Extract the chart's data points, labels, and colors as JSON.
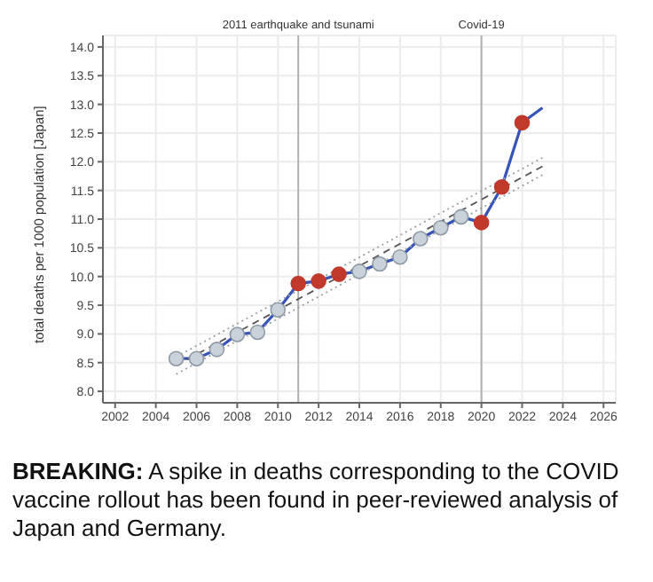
{
  "chart_data": {
    "type": "line",
    "ylabel": "total deaths per 1000 population [Japan]",
    "series": [
      {
        "color": "#3553b8",
        "x": [
          2005,
          2006,
          2007,
          2008,
          2009,
          2010,
          2011,
          2012,
          2013,
          2014,
          2015,
          2016,
          2017,
          2018,
          2019,
          2020,
          2021,
          2022,
          2023
        ],
        "values": [
          8.57,
          8.57,
          8.73,
          8.99,
          9.03,
          9.42,
          9.88,
          9.92,
          10.04,
          10.09,
          10.22,
          10.34,
          10.66,
          10.85,
          11.04,
          10.94,
          11.56,
          12.68,
          12.94
        ],
        "colors": [
          "#c9d1d9",
          "#c9d1d9",
          "#c9d1d9",
          "#c9d1d9",
          "#c9d1d9",
          "#c9d1d9",
          "#c0392b",
          "#c0392b",
          "#c0392b",
          "#c9d1d9",
          "#c9d1d9",
          "#c9d1d9",
          "#c9d1d9",
          "#c9d1d9",
          "#c9d1d9",
          "#c0392b",
          "#c0392b",
          "#c0392b",
          null
        ],
        "marker": "circle",
        "line_style": "solid"
      },
      {
        "color": "#555555",
        "x": [
          2005,
          2023
        ],
        "values": [
          8.45,
          11.92
        ],
        "marker": "none",
        "line_style": "dashed"
      },
      {
        "color": "#9aa0a6",
        "x": [
          2005,
          2023
        ],
        "values": [
          8.6,
          12.07
        ],
        "marker": "none",
        "line_style": "dotted"
      },
      {
        "color": "#9aa0a6",
        "x": [
          2005,
          2023
        ],
        "values": [
          8.3,
          11.77
        ],
        "marker": "none",
        "line_style": "dotted"
      }
    ],
    "xlim": [
      2001.4,
      2026.6
    ],
    "xticks": [
      2002,
      2004,
      2006,
      2008,
      2010,
      2012,
      2014,
      2016,
      2018,
      2020,
      2022,
      2024,
      2026
    ],
    "ylim": [
      7.8,
      14.2
    ],
    "yticks": [
      {
        "value": 8,
        "label": "8.0"
      },
      {
        "value": 8.5,
        "label": "8.5"
      },
      {
        "value": 9,
        "label": "9.0"
      },
      {
        "value": 9.5,
        "label": "9.5"
      },
      {
        "value": 10,
        "label": "10.0"
      },
      {
        "value": 10.5,
        "label": "10.5"
      },
      {
        "value": 11,
        "label": "11.0"
      },
      {
        "value": 11.5,
        "label": "11.5"
      },
      {
        "value": 12,
        "label": "12.0"
      },
      {
        "value": 12.5,
        "label": "12.5"
      },
      {
        "value": 13,
        "label": "13.0"
      },
      {
        "value": 13.5,
        "label": "13.5"
      },
      {
        "value": 14,
        "label": "14.0"
      }
    ],
    "ref_lines": [
      {
        "axis": "x",
        "value": 2011,
        "label": "2011 earthquake and tsunami",
        "color": "#b0b0b0"
      },
      {
        "axis": "x",
        "value": 2020,
        "label": "Covid-19",
        "color": "#b0b0b0"
      }
    ],
    "grid": true,
    "annotations": [
      "BREAKING: A spike in deaths corresponding to the COVID vaccine rollout has been found in peer-reviewed analysis of Japan and Germany."
    ]
  }
}
